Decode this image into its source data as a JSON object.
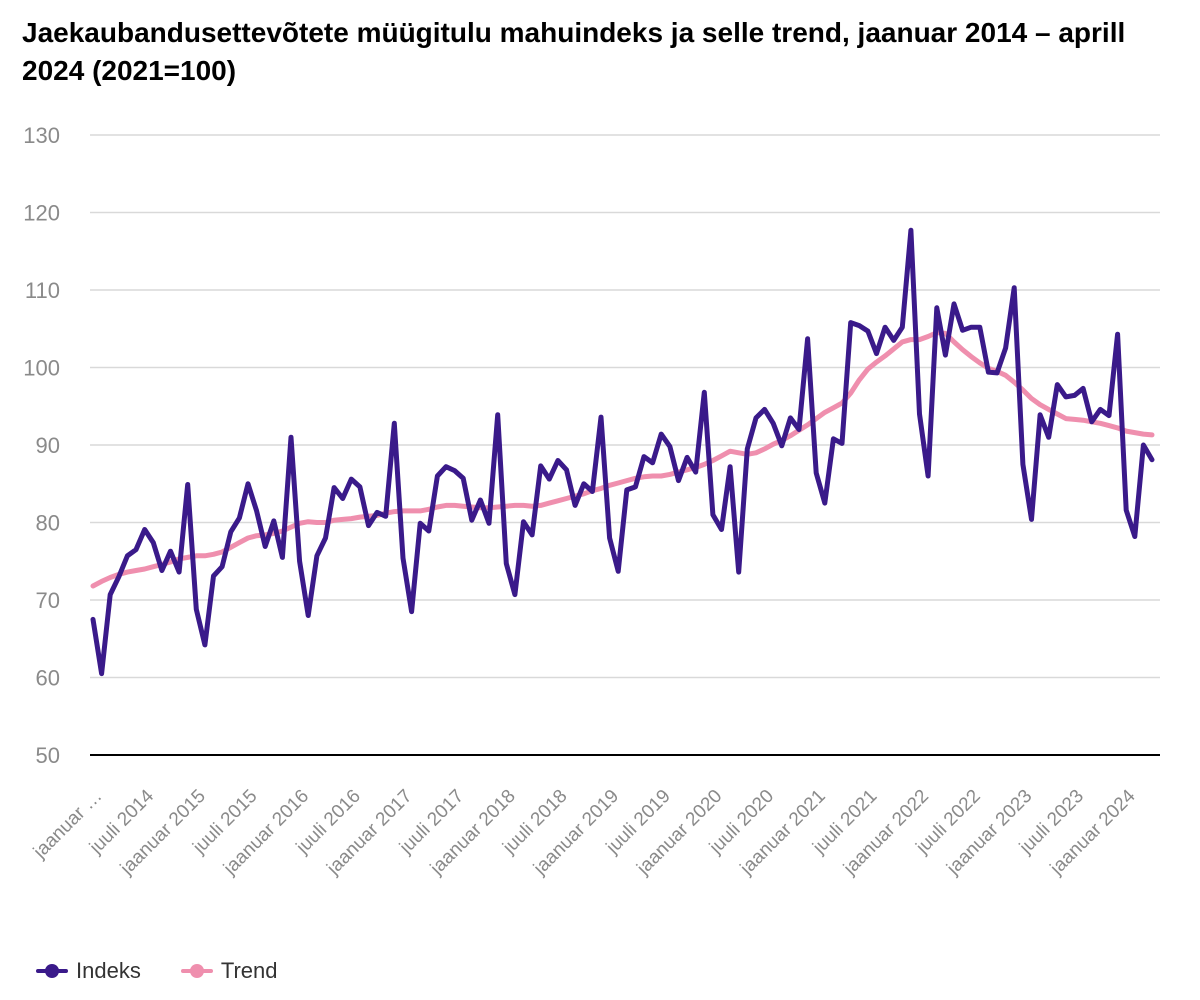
{
  "title": "Jaekaubandusettevõtete müügitulu mahuindeks ja selle trend, jaanuar 2014 – aprill 2024 (2021=100)",
  "chart_data": {
    "type": "line",
    "ylim": [
      50,
      130
    ],
    "yticks": [
      50,
      60,
      70,
      80,
      90,
      100,
      110,
      120,
      130
    ],
    "grid": true,
    "legend_position": "bottom-left",
    "x_tick_labels": [
      "jaanuar …",
      "juuli 2014",
      "jaanuar 2015",
      "juuli 2015",
      "jaanuar 2016",
      "juuli 2016",
      "jaanuar 2017",
      "juuli 2017",
      "jaanuar 2018",
      "juuli 2018",
      "jaanuar 2019",
      "juuli 2019",
      "jaanuar 2020",
      "juuli 2020",
      "jaanuar 2021",
      "juuli 2021",
      "jaanuar 2022",
      "juuli 2022",
      "jaanuar 2023",
      "juuli 2023",
      "jaanuar 2024"
    ],
    "x": [
      "2014-01",
      "2014-02",
      "2014-03",
      "2014-04",
      "2014-05",
      "2014-06",
      "2014-07",
      "2014-08",
      "2014-09",
      "2014-10",
      "2014-11",
      "2014-12",
      "2015-01",
      "2015-02",
      "2015-03",
      "2015-04",
      "2015-05",
      "2015-06",
      "2015-07",
      "2015-08",
      "2015-09",
      "2015-10",
      "2015-11",
      "2015-12",
      "2016-01",
      "2016-02",
      "2016-03",
      "2016-04",
      "2016-05",
      "2016-06",
      "2016-07",
      "2016-08",
      "2016-09",
      "2016-10",
      "2016-11",
      "2016-12",
      "2017-01",
      "2017-02",
      "2017-03",
      "2017-04",
      "2017-05",
      "2017-06",
      "2017-07",
      "2017-08",
      "2017-09",
      "2017-10",
      "2017-11",
      "2017-12",
      "2018-01",
      "2018-02",
      "2018-03",
      "2018-04",
      "2018-05",
      "2018-06",
      "2018-07",
      "2018-08",
      "2018-09",
      "2018-10",
      "2018-11",
      "2018-12",
      "2019-01",
      "2019-02",
      "2019-03",
      "2019-04",
      "2019-05",
      "2019-06",
      "2019-07",
      "2019-08",
      "2019-09",
      "2019-10",
      "2019-11",
      "2019-12",
      "2020-01",
      "2020-02",
      "2020-03",
      "2020-04",
      "2020-05",
      "2020-06",
      "2020-07",
      "2020-08",
      "2020-09",
      "2020-10",
      "2020-11",
      "2020-12",
      "2021-01",
      "2021-02",
      "2021-03",
      "2021-04",
      "2021-05",
      "2021-06",
      "2021-07",
      "2021-08",
      "2021-09",
      "2021-10",
      "2021-11",
      "2021-12",
      "2022-01",
      "2022-02",
      "2022-03",
      "2022-04",
      "2022-05",
      "2022-06",
      "2022-07",
      "2022-08",
      "2022-09",
      "2022-10",
      "2022-11",
      "2022-12",
      "2023-01",
      "2023-02",
      "2023-03",
      "2023-04",
      "2023-05",
      "2023-06",
      "2023-07",
      "2023-08",
      "2023-09",
      "2023-10",
      "2023-11",
      "2023-12",
      "2024-01",
      "2024-02",
      "2024-03",
      "2024-04"
    ],
    "series": [
      {
        "name": "Indeks",
        "color": "#3a1a8a",
        "values": [
          67.5,
          60.5,
          70.7,
          73.0,
          75.7,
          76.5,
          79.1,
          77.4,
          73.8,
          76.3,
          73.6,
          84.9,
          68.8,
          64.2,
          73.1,
          74.3,
          78.8,
          80.6,
          85.0,
          81.5,
          76.9,
          80.2,
          75.5,
          91.0,
          75.0,
          68.0,
          75.7,
          78.0,
          84.5,
          83.1,
          85.6,
          84.6,
          79.6,
          81.3,
          80.8,
          92.8,
          75.4,
          68.5,
          79.9,
          78.9,
          86.0,
          87.2,
          86.7,
          85.7,
          80.3,
          82.9,
          79.9,
          93.9,
          74.7,
          70.7,
          80.1,
          78.4,
          87.3,
          85.6,
          88.0,
          86.8,
          82.2,
          85.0,
          84.0,
          93.6,
          78.0,
          73.7,
          84.2,
          84.6,
          88.5,
          87.7,
          91.4,
          89.8,
          85.4,
          88.4,
          86.5,
          96.8,
          81.0,
          79.1,
          87.2,
          73.6,
          89.5,
          93.5,
          94.6,
          92.8,
          89.9,
          93.5,
          92.0,
          103.7,
          86.4,
          82.5,
          90.8,
          90.2,
          105.8,
          105.4,
          104.7,
          101.8,
          105.2,
          103.5,
          105.2,
          117.7,
          94.0,
          86.0,
          107.7,
          101.6,
          108.2,
          104.8,
          105.2,
          105.2,
          99.4,
          99.3,
          102.5,
          110.3,
          87.5,
          80.4,
          93.9,
          91.0,
          97.8,
          96.2,
          96.4,
          97.3,
          93.0,
          94.6,
          93.8,
          104.3,
          81.6,
          78.2,
          90.0,
          88.1
        ]
      },
      {
        "name": "Trend",
        "color": "#ef8fae",
        "values": [
          71.8,
          72.4,
          72.9,
          73.3,
          73.6,
          73.8,
          74.0,
          74.3,
          74.6,
          74.9,
          75.3,
          75.5,
          75.7,
          75.7,
          75.9,
          76.2,
          76.8,
          77.4,
          78.0,
          78.3,
          78.4,
          78.6,
          78.9,
          79.4,
          79.9,
          80.1,
          80.0,
          80.0,
          80.3,
          80.4,
          80.5,
          80.7,
          80.8,
          80.9,
          81.2,
          81.4,
          81.5,
          81.5,
          81.5,
          81.7,
          82.0,
          82.2,
          82.2,
          82.1,
          82.0,
          81.9,
          81.9,
          82.0,
          82.1,
          82.2,
          82.2,
          82.1,
          82.2,
          82.5,
          82.8,
          83.1,
          83.4,
          83.7,
          84.1,
          84.4,
          84.8,
          85.1,
          85.4,
          85.7,
          85.9,
          86.0,
          86.0,
          86.2,
          86.5,
          86.8,
          87.1,
          87.5,
          88.0,
          88.6,
          89.2,
          89.0,
          88.8,
          89.0,
          89.5,
          90.1,
          90.6,
          91.2,
          91.9,
          92.6,
          93.4,
          94.2,
          94.8,
          95.4,
          96.7,
          98.4,
          99.8,
          100.7,
          101.5,
          102.4,
          103.3,
          103.6,
          103.6,
          104.0,
          104.5,
          104.4,
          103.3,
          102.3,
          101.4,
          100.6,
          99.9,
          99.5,
          99.0,
          98.1,
          97.1,
          96.0,
          95.2,
          94.6,
          94.0,
          93.4,
          93.3,
          93.2,
          93.0,
          92.8,
          92.5,
          92.2,
          91.8,
          91.6,
          91.4,
          91.3
        ]
      }
    ]
  }
}
